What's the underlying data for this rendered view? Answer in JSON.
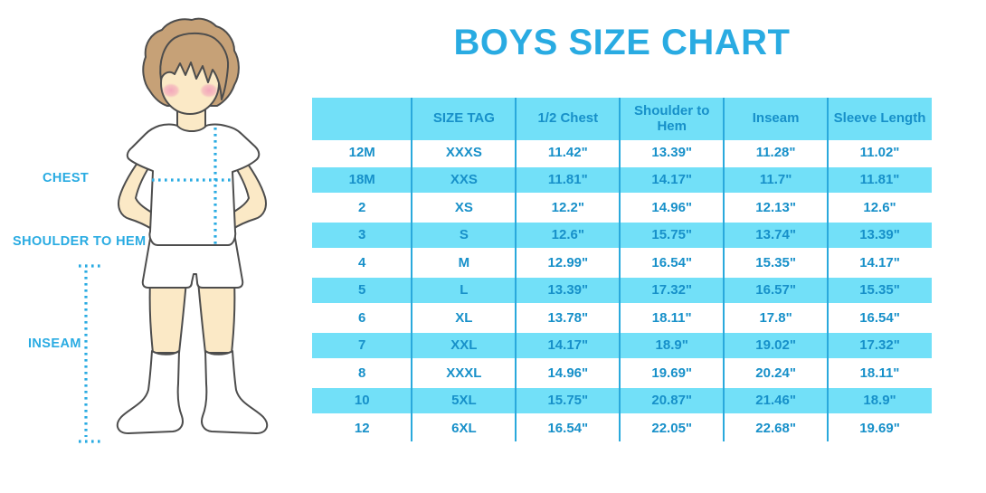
{
  "title": "BOYS SIZE CHART",
  "figure": {
    "description": "outline illustration of a boy in white t-shirt, shorts and knee socks with blue dotted measurement lines",
    "labels": {
      "chest": "CHEST",
      "shoulder_to_hem": "SHOULDER TO HEM",
      "inseam": "INSEAM"
    }
  },
  "chart_data": {
    "type": "table",
    "title": "BOYS SIZE CHART",
    "columns": [
      "",
      "SIZE TAG",
      "1/2 Chest",
      "Shoulder to Hem",
      "Inseam",
      "Sleeve Length"
    ],
    "rows": [
      [
        "12M",
        "XXXS",
        "11.42\"",
        "13.39\"",
        "11.28\"",
        "11.02\""
      ],
      [
        "18M",
        "XXS",
        "11.81\"",
        "14.17\"",
        "11.7\"",
        "11.81\""
      ],
      [
        "2",
        "XS",
        "12.2\"",
        "14.96\"",
        "12.13\"",
        "12.6\""
      ],
      [
        "3",
        "S",
        "12.6\"",
        "15.75\"",
        "13.74\"",
        "13.39\""
      ],
      [
        "4",
        "M",
        "12.99\"",
        "16.54\"",
        "15.35\"",
        "14.17\""
      ],
      [
        "5",
        "L",
        "13.39\"",
        "17.32\"",
        "16.57\"",
        "15.35\""
      ],
      [
        "6",
        "XL",
        "13.78\"",
        "18.11\"",
        "17.8\"",
        "16.54\""
      ],
      [
        "7",
        "XXL",
        "14.17\"",
        "18.9\"",
        "19.02\"",
        "17.32\""
      ],
      [
        "8",
        "XXXL",
        "14.96\"",
        "19.69\"",
        "20.24\"",
        "18.11\""
      ],
      [
        "10",
        "5XL",
        "15.75\"",
        "20.87\"",
        "21.46\"",
        "18.9\""
      ],
      [
        "12",
        "6XL",
        "16.54\"",
        "22.05\"",
        "22.68\"",
        "19.69\""
      ]
    ],
    "striped_row_indices": [
      1,
      3,
      5,
      7,
      9
    ],
    "layout": "header row and alternate rows filled cyan, blue vertical column dividers, no horizontal grid lines"
  },
  "colors": {
    "accent_blue": "#29ABE2",
    "table_fill_cyan": "#72E0F8",
    "table_text_blue": "#1790C9",
    "divider_blue": "#2AA9DC",
    "skin": "#FBE9C6",
    "hair": "#C6A177",
    "blush": "#F2A0B9",
    "outline": "#4D4D4D"
  }
}
